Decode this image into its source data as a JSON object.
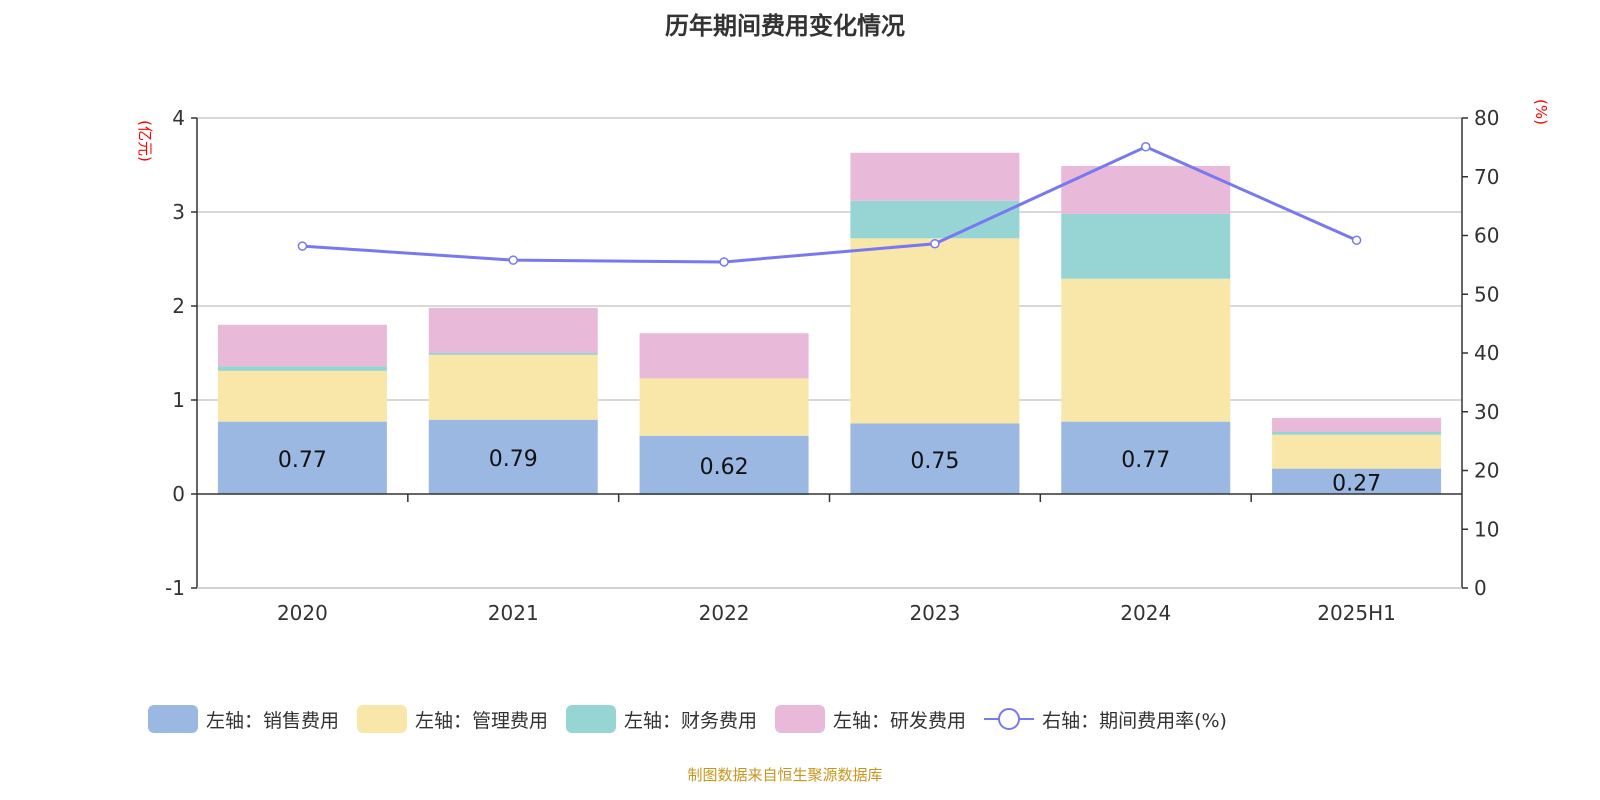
{
  "title": "历年期间费用变化情况",
  "source": "制图数据来自恒生聚源数据库",
  "chart_data": {
    "type": "bar",
    "stacked": true,
    "categories": [
      "2020",
      "2021",
      "2022",
      "2023",
      "2024",
      "2025H1"
    ],
    "left_axis": {
      "label": "(亿元)",
      "ylim": [
        -1,
        4
      ],
      "ticks": [
        -1,
        0,
        1,
        2,
        3,
        4
      ]
    },
    "right_axis": {
      "label": "(%)",
      "ylim": [
        0,
        80
      ],
      "ticks": [
        0,
        10,
        20,
        30,
        40,
        50,
        60,
        70,
        80
      ]
    },
    "grid": true,
    "legend_position": "bottom",
    "series": [
      {
        "name": "左轴：销售费用",
        "color": "#9bb8e2",
        "values": [
          0.77,
          0.79,
          0.62,
          0.75,
          0.77,
          0.27
        ],
        "show_labels": true
      },
      {
        "name": "左轴：管理费用",
        "color": "#f8e7a8",
        "values": [
          0.54,
          0.69,
          0.61,
          1.97,
          1.52,
          0.36
        ]
      },
      {
        "name": "左轴：财务费用",
        "color": "#97d4d4",
        "values": [
          0.05,
          0.02,
          -0.01,
          0.4,
          0.69,
          0.03
        ]
      },
      {
        "name": "左轴：研发费用",
        "color": "#e8b9d8",
        "values": [
          0.44,
          0.48,
          0.48,
          0.51,
          0.51,
          0.15
        ]
      }
    ],
    "line": {
      "name": "右轴：期间费用率(%)",
      "color": "#7878f0",
      "axis": "right",
      "values": [
        58.2,
        55.8,
        55.5,
        58.6,
        75.1,
        59.2
      ]
    }
  }
}
